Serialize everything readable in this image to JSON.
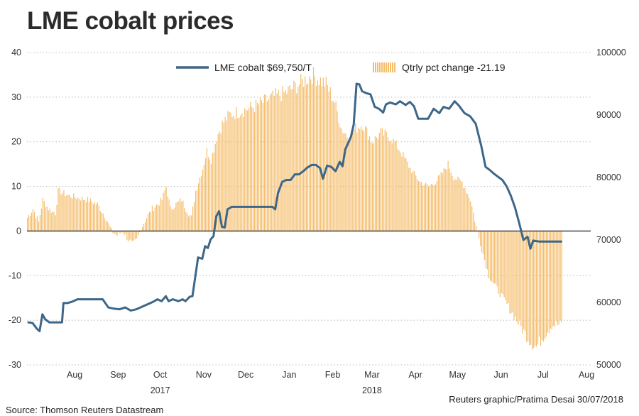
{
  "chart_data": {
    "type": "bar+line",
    "title": "LME cobalt prices",
    "x_axis": {
      "month_labels": [
        "Aug",
        "Sep",
        "Oct",
        "Nov",
        "Dec",
        "Jan",
        "Feb",
        "Mar",
        "Apr",
        "May",
        "Jun",
        "Jul",
        "Aug"
      ],
      "year_labels": [
        "2017",
        "2018"
      ],
      "range": [
        "2017-07-12",
        "2018-08-18"
      ]
    },
    "y_left": {
      "ticks": [
        40,
        30,
        20,
        10,
        0,
        -10,
        -20,
        -30
      ],
      "range": [
        -30,
        40
      ]
    },
    "y_right": {
      "ticks": [
        100000,
        90000,
        80000,
        70000,
        60000,
        50000
      ],
      "range": [
        50000,
        100000
      ]
    },
    "grid": true,
    "legend_position": "top-center",
    "series": [
      {
        "name": "LME cobalt $69,750/T",
        "kind": "line",
        "axis": "right",
        "color": "#3d6688",
        "points": [
          [
            "2017-07-13",
            56800
          ],
          [
            "2017-07-16",
            56700
          ],
          [
            "2017-07-19",
            55800
          ],
          [
            "2017-07-21",
            55400
          ],
          [
            "2017-07-23",
            58100
          ],
          [
            "2017-07-25",
            57300
          ],
          [
            "2017-07-28",
            56800
          ],
          [
            "2017-08-02",
            56800
          ],
          [
            "2017-08-06",
            56800
          ],
          [
            "2017-08-07",
            59900
          ],
          [
            "2017-08-10",
            59900
          ],
          [
            "2017-08-13",
            60100
          ],
          [
            "2017-08-17",
            60500
          ],
          [
            "2017-08-21",
            60500
          ],
          [
            "2017-08-28",
            60500
          ],
          [
            "2017-09-04",
            60500
          ],
          [
            "2017-09-08",
            59200
          ],
          [
            "2017-09-12",
            59000
          ],
          [
            "2017-09-16",
            58900
          ],
          [
            "2017-09-20",
            59200
          ],
          [
            "2017-09-24",
            58700
          ],
          [
            "2017-09-28",
            58900
          ],
          [
            "2017-10-02",
            59300
          ],
          [
            "2017-10-06",
            59700
          ],
          [
            "2017-10-10",
            60100
          ],
          [
            "2017-10-13",
            60500
          ],
          [
            "2017-10-16",
            60200
          ],
          [
            "2017-10-19",
            61000
          ],
          [
            "2017-10-21",
            60200
          ],
          [
            "2017-10-24",
            60500
          ],
          [
            "2017-10-28",
            60200
          ],
          [
            "2017-10-31",
            60500
          ],
          [
            "2017-11-02",
            60200
          ],
          [
            "2017-11-05",
            60900
          ],
          [
            "2017-11-07",
            61000
          ],
          [
            "2017-11-09",
            64100
          ],
          [
            "2017-11-11",
            67200
          ],
          [
            "2017-11-14",
            67000
          ],
          [
            "2017-11-16",
            69000
          ],
          [
            "2017-11-18",
            68700
          ],
          [
            "2017-11-20",
            70100
          ],
          [
            "2017-11-22",
            70600
          ],
          [
            "2017-11-24",
            73800
          ],
          [
            "2017-11-26",
            74600
          ],
          [
            "2017-11-28",
            72100
          ],
          [
            "2017-11-30",
            72000
          ],
          [
            "2017-12-02",
            74900
          ],
          [
            "2017-12-05",
            75300
          ],
          [
            "2017-12-08",
            75300
          ],
          [
            "2017-12-15",
            75300
          ],
          [
            "2017-12-22",
            75300
          ],
          [
            "2017-12-29",
            75300
          ],
          [
            "2018-01-03",
            75300
          ],
          [
            "2018-01-05",
            74900
          ],
          [
            "2018-01-07",
            77500
          ],
          [
            "2018-01-10",
            79300
          ],
          [
            "2018-01-13",
            79600
          ],
          [
            "2018-01-16",
            79600
          ],
          [
            "2018-01-19",
            80500
          ],
          [
            "2018-01-22",
            80500
          ],
          [
            "2018-01-25",
            81000
          ],
          [
            "2018-01-28",
            81600
          ],
          [
            "2018-01-31",
            82000
          ],
          [
            "2018-02-03",
            82000
          ],
          [
            "2018-02-06",
            81500
          ],
          [
            "2018-02-08",
            79800
          ],
          [
            "2018-02-11",
            81900
          ],
          [
            "2018-02-14",
            81700
          ],
          [
            "2018-02-17",
            81000
          ],
          [
            "2018-02-20",
            82500
          ],
          [
            "2018-02-22",
            81800
          ],
          [
            "2018-02-24",
            84500
          ],
          [
            "2018-02-26",
            85500
          ],
          [
            "2018-02-28",
            86500
          ],
          [
            "2018-03-02",
            88500
          ],
          [
            "2018-03-04",
            95000
          ],
          [
            "2018-03-06",
            94900
          ],
          [
            "2018-03-08",
            93800
          ],
          [
            "2018-03-11",
            93500
          ],
          [
            "2018-03-14",
            93300
          ],
          [
            "2018-03-17",
            91300
          ],
          [
            "2018-03-20",
            91000
          ],
          [
            "2018-03-23",
            90400
          ],
          [
            "2018-03-25",
            91700
          ],
          [
            "2018-03-28",
            92000
          ],
          [
            "2018-04-01",
            91700
          ],
          [
            "2018-04-04",
            92200
          ],
          [
            "2018-04-08",
            91600
          ],
          [
            "2018-04-11",
            92100
          ],
          [
            "2018-04-14",
            91400
          ],
          [
            "2018-04-17",
            89400
          ],
          [
            "2018-04-20",
            89400
          ],
          [
            "2018-04-24",
            89400
          ],
          [
            "2018-04-28",
            91000
          ],
          [
            "2018-05-02",
            90300
          ],
          [
            "2018-05-05",
            91300
          ],
          [
            "2018-05-09",
            91000
          ],
          [
            "2018-05-13",
            92200
          ],
          [
            "2018-05-16",
            91500
          ],
          [
            "2018-05-20",
            90300
          ],
          [
            "2018-05-24",
            89800
          ],
          [
            "2018-05-28",
            88600
          ],
          [
            "2018-06-01",
            85000
          ],
          [
            "2018-06-04",
            81700
          ],
          [
            "2018-06-07",
            81200
          ],
          [
            "2018-06-10",
            80600
          ],
          [
            "2018-06-13",
            80100
          ],
          [
            "2018-06-16",
            79600
          ],
          [
            "2018-06-19",
            78600
          ],
          [
            "2018-06-22",
            77100
          ],
          [
            "2018-06-25",
            75200
          ],
          [
            "2018-06-28",
            72700
          ],
          [
            "2018-07-01",
            70000
          ],
          [
            "2018-07-04",
            70500
          ],
          [
            "2018-07-06",
            68600
          ],
          [
            "2018-07-08",
            69900
          ],
          [
            "2018-07-12",
            69750
          ],
          [
            "2018-07-20",
            69750
          ],
          [
            "2018-07-28",
            69750
          ]
        ]
      },
      {
        "name": "Qtrly pct change -21.19",
        "kind": "bar",
        "axis": "left",
        "color": "#f5bd6b",
        "segments": [
          [
            "2017-07-12",
            3
          ],
          [
            "2017-07-16",
            5
          ],
          [
            "2017-07-20",
            2
          ],
          [
            "2017-07-23",
            7
          ],
          [
            "2017-07-27",
            5
          ],
          [
            "2017-08-01",
            4
          ],
          [
            "2017-08-03",
            9
          ],
          [
            "2017-08-10",
            8
          ],
          [
            "2017-08-24",
            7
          ],
          [
            "2017-08-31",
            6
          ],
          [
            "2017-09-06",
            3
          ],
          [
            "2017-09-10",
            0
          ],
          [
            "2017-09-14",
            -1
          ],
          [
            "2017-09-18",
            0
          ],
          [
            "2017-09-22",
            -2
          ],
          [
            "2017-09-25",
            -3
          ],
          [
            "2017-09-28",
            -2
          ],
          [
            "2017-10-01",
            0.5
          ],
          [
            "2017-10-05",
            3
          ],
          [
            "2017-10-09",
            5
          ],
          [
            "2017-10-13",
            6
          ],
          [
            "2017-10-16",
            7
          ],
          [
            "2017-10-19",
            10
          ],
          [
            "2017-10-22",
            5
          ],
          [
            "2017-10-26",
            6
          ],
          [
            "2017-10-30",
            7
          ],
          [
            "2017-11-02",
            5
          ],
          [
            "2017-11-06",
            3
          ],
          [
            "2017-11-09",
            9
          ],
          [
            "2017-11-14",
            14
          ],
          [
            "2017-11-17",
            18
          ],
          [
            "2017-11-20",
            16
          ],
          [
            "2017-11-24",
            21
          ],
          [
            "2017-11-28",
            24
          ],
          [
            "2017-12-03",
            26
          ],
          [
            "2017-12-12",
            27
          ],
          [
            "2017-12-22",
            28
          ],
          [
            "2018-01-03",
            30
          ],
          [
            "2018-01-12",
            31
          ],
          [
            "2018-01-22",
            33
          ],
          [
            "2018-01-31",
            35
          ],
          [
            "2018-02-10",
            33
          ],
          [
            "2018-02-16",
            29
          ],
          [
            "2018-02-21",
            23
          ],
          [
            "2018-02-26",
            21
          ],
          [
            "2018-03-03",
            23
          ],
          [
            "2018-03-08",
            24
          ],
          [
            "2018-03-15",
            20
          ],
          [
            "2018-03-21",
            22
          ],
          [
            "2018-03-28",
            21
          ],
          [
            "2018-04-04",
            18
          ],
          [
            "2018-04-11",
            14
          ],
          [
            "2018-04-18",
            11
          ],
          [
            "2018-04-24",
            10
          ],
          [
            "2018-04-29",
            11
          ],
          [
            "2018-05-04",
            13
          ],
          [
            "2018-05-08",
            15
          ],
          [
            "2018-05-12",
            12
          ],
          [
            "2018-05-18",
            11
          ],
          [
            "2018-05-24",
            7
          ],
          [
            "2018-05-28",
            1
          ],
          [
            "2018-06-01",
            -4
          ],
          [
            "2018-06-06",
            -10
          ],
          [
            "2018-06-12",
            -13
          ],
          [
            "2018-06-18",
            -16
          ],
          [
            "2018-06-24",
            -19
          ],
          [
            "2018-06-30",
            -22
          ],
          [
            "2018-07-06",
            -25
          ],
          [
            "2018-07-10",
            -26
          ],
          [
            "2018-07-14",
            -24
          ],
          [
            "2018-07-21",
            -21
          ],
          [
            "2018-07-28",
            -21
          ]
        ]
      }
    ]
  },
  "footer": {
    "credit": "Reuters graphic/Pratima Desai 30/07/2018",
    "source": "Source: Thomson Reuters Datastream"
  },
  "colors": {
    "line": "#3d6688",
    "bar": "#f5bd6b",
    "zero_line": "#333333",
    "grid": "#b9b9b9"
  }
}
